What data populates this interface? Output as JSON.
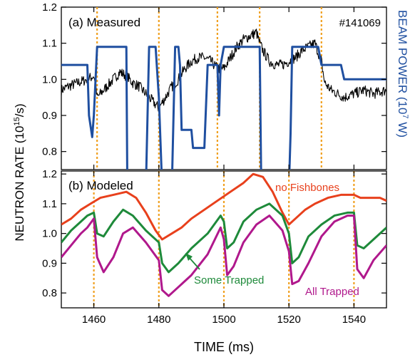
{
  "chart_data": [
    {
      "type": "line",
      "panel_label": "(a) Measured",
      "shot_label": "#141069",
      "ylabel": "NEUTRON RATE (10",
      "ylabel_sup": "15",
      "ylabel_end": "/s)",
      "y2label": "BEAM POWER (10",
      "y2label_sup": "7",
      "y2label_end": " W)",
      "xlim": [
        1450,
        1550
      ],
      "ylim": [
        0.75,
        1.2
      ],
      "yticks": [
        "0.8",
        "0.9",
        "1.0",
        "1.1",
        "1.2"
      ],
      "yticks_val": [
        0.8,
        0.9,
        1.0,
        1.1,
        1.2
      ],
      "vlines": [
        1461,
        1480,
        1498,
        1511,
        1530
      ],
      "colors": {
        "measured": "#000000",
        "beam": "#1f4fa0",
        "vline": "#f0a020"
      },
      "series": [
        {
          "key": "measured",
          "x": [
            1450,
            1452,
            1455,
            1458,
            1460,
            1461,
            1462,
            1464,
            1466,
            1468,
            1470,
            1472,
            1474,
            1476,
            1478,
            1480,
            1482,
            1484,
            1486,
            1488,
            1490,
            1492,
            1494,
            1496,
            1498,
            1500,
            1502,
            1504,
            1506,
            1508,
            1510,
            1511,
            1512,
            1514,
            1516,
            1518,
            1520,
            1522,
            1524,
            1526,
            1528,
            1530,
            1531,
            1533,
            1535,
            1537,
            1540,
            1543,
            1546,
            1550
          ],
          "y": [
            0.97,
            0.98,
            0.99,
            1.0,
            1.01,
            0.95,
            0.96,
            0.98,
            1.0,
            1.02,
            1.01,
            0.99,
            0.98,
            0.96,
            0.94,
            0.92,
            0.95,
            0.98,
            1.0,
            1.03,
            1.05,
            1.06,
            1.06,
            1.05,
            1.03,
            1.03,
            1.06,
            1.09,
            1.11,
            1.12,
            1.13,
            1.1,
            1.08,
            1.05,
            1.04,
            1.04,
            1.05,
            1.06,
            1.08,
            1.09,
            1.1,
            1.05,
            0.99,
            0.97,
            0.96,
            0.95,
            0.96,
            0.97,
            0.96,
            0.97
          ]
        },
        {
          "key": "beam",
          "x": [
            1450,
            1458,
            1458.5,
            1459.5,
            1460,
            1461,
            1462,
            1469,
            1470,
            1470.3,
            1476,
            1477,
            1478,
            1479,
            1480,
            1481,
            1481.5,
            1484,
            1485,
            1486,
            1486.5,
            1487,
            1488,
            1490,
            1490.5,
            1493,
            1494,
            1495,
            1497,
            1498,
            1498.5,
            1499,
            1500,
            1502,
            1510,
            1511,
            1511.5,
            1520,
            1520.5,
            1521,
            1522,
            1529,
            1530,
            1531,
            1536,
            1537,
            1550
          ],
          "y": [
            1.04,
            1.04,
            0.9,
            0.84,
            0.9,
            1.09,
            1.09,
            1.09,
            1.09,
            0.7,
            0.7,
            1.09,
            1.09,
            1.09,
            0.95,
            0.7,
            0.7,
            0.7,
            1.09,
            1.09,
            1.04,
            0.86,
            0.86,
            0.86,
            0.81,
            0.81,
            0.81,
            1.04,
            1.04,
            1.04,
            0.9,
            1.04,
            1.09,
            1.09,
            1.09,
            1.09,
            0.7,
            0.7,
            0.85,
            1.09,
            1.09,
            1.09,
            1.04,
            1.04,
            1.04,
            1.0,
            1.0
          ]
        }
      ]
    },
    {
      "type": "line",
      "panel_label": "(b) Modeled",
      "xlabel": "TIME (ms)",
      "xlim": [
        1450,
        1550
      ],
      "ylim": [
        0.75,
        1.21
      ],
      "xticks": [
        "1460",
        "1480",
        "1500",
        "1520",
        "1540"
      ],
      "xticks_val": [
        1460,
        1480,
        1500,
        1520,
        1540
      ],
      "yticks": [
        "0.8",
        "0.9",
        "1.0",
        "1.1",
        "1.2"
      ],
      "yticks_val": [
        0.8,
        0.9,
        1.0,
        1.1,
        1.2
      ],
      "vlines": [
        1460,
        1480,
        1500,
        1520,
        1540
      ],
      "annotations": [
        {
          "text": "no Fishbones",
          "color": "#e8401c"
        },
        {
          "text": "Some Trapped",
          "color": "#1e8a3a"
        },
        {
          "text": "All Trapped",
          "color": "#b0188c"
        }
      ],
      "colors": {
        "vline": "#f0a020"
      },
      "series": [
        {
          "key": "no-fishbones",
          "color": "#e8401c",
          "x": [
            1450,
            1453,
            1456,
            1459,
            1462,
            1466,
            1470,
            1473,
            1476,
            1479,
            1481,
            1484,
            1487,
            1490,
            1494,
            1498,
            1502,
            1506,
            1509,
            1512,
            1515,
            1518,
            1520,
            1522,
            1525,
            1528,
            1532,
            1536,
            1540,
            1542,
            1544,
            1546,
            1548,
            1550
          ],
          "y": [
            1.03,
            1.05,
            1.08,
            1.1,
            1.12,
            1.13,
            1.14,
            1.12,
            1.07,
            1.01,
            0.98,
            1.0,
            1.02,
            1.05,
            1.08,
            1.11,
            1.14,
            1.17,
            1.2,
            1.19,
            1.14,
            1.07,
            1.03,
            1.05,
            1.08,
            1.1,
            1.12,
            1.13,
            1.13,
            1.12,
            1.12,
            1.12,
            1.12,
            1.11
          ]
        },
        {
          "key": "some-trapped",
          "color": "#1e8a3a",
          "x": [
            1450,
            1453,
            1456,
            1458,
            1460,
            1461,
            1463,
            1466,
            1469,
            1472,
            1476,
            1480,
            1481,
            1483,
            1486,
            1490,
            1495,
            1499,
            1500,
            1501,
            1503,
            1506,
            1510,
            1514,
            1518,
            1520,
            1521,
            1523,
            1526,
            1530,
            1534,
            1538,
            1540,
            1541,
            1543,
            1546,
            1550
          ],
          "y": [
            0.97,
            1.01,
            1.04,
            1.06,
            1.07,
            1.0,
            0.99,
            1.04,
            1.08,
            1.06,
            1.01,
            0.97,
            0.9,
            0.87,
            0.9,
            0.95,
            1.0,
            1.06,
            1.04,
            0.95,
            0.97,
            1.04,
            1.08,
            1.1,
            1.06,
            1.0,
            0.9,
            0.92,
            0.99,
            1.03,
            1.06,
            1.07,
            1.07,
            0.96,
            0.95,
            0.98,
            1.02
          ]
        },
        {
          "key": "all-trapped",
          "color": "#b0188c",
          "x": [
            1450,
            1453,
            1456,
            1458,
            1460,
            1461,
            1463,
            1466,
            1469,
            1472,
            1476,
            1480,
            1481,
            1483,
            1486,
            1490,
            1495,
            1499,
            1500,
            1501,
            1503,
            1506,
            1510,
            1514,
            1518,
            1520,
            1521,
            1523,
            1526,
            1530,
            1534,
            1538,
            1540,
            1541,
            1543,
            1546,
            1550
          ],
          "y": [
            0.92,
            0.96,
            1.0,
            1.02,
            1.05,
            0.92,
            0.87,
            0.92,
            1.0,
            1.02,
            0.97,
            0.91,
            0.81,
            0.79,
            0.82,
            0.86,
            0.93,
            1.02,
            0.98,
            0.86,
            0.89,
            0.97,
            1.03,
            1.06,
            1.01,
            0.94,
            0.83,
            0.84,
            0.9,
            0.99,
            1.04,
            1.06,
            1.06,
            0.88,
            0.85,
            0.91,
            0.96
          ]
        }
      ]
    }
  ]
}
